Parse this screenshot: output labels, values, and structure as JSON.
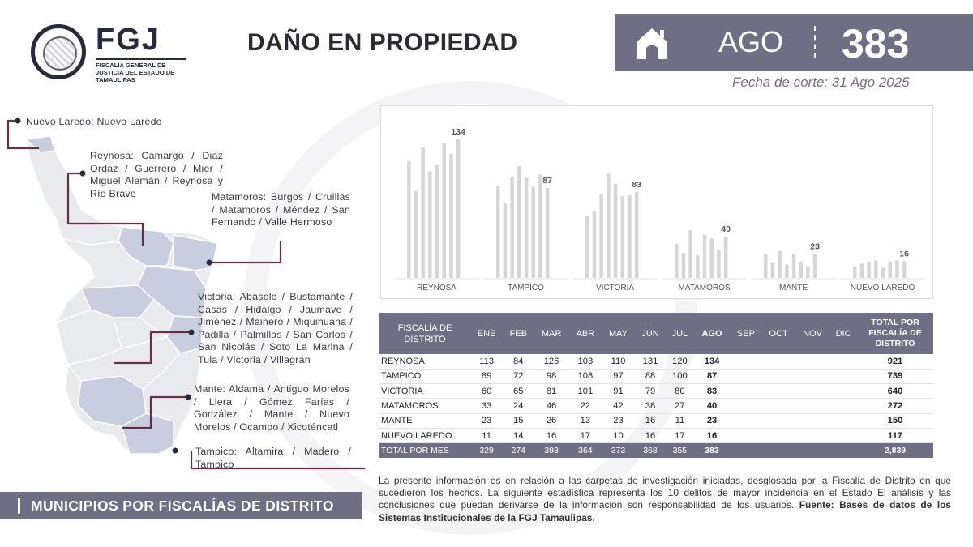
{
  "header": {
    "logo_name": "FGJ",
    "logo_subtitle": "FISCALÍA GENERAL DE JUSTICIA DEL ESTADO DE TAMAULIPAS",
    "title": "DAÑO EN PROPIEDAD",
    "month": "AGO",
    "month_total": "383",
    "cutoff": "Fecha de corte: 31 Ago 2025",
    "icon": "house-icon"
  },
  "districts": [
    {
      "label": "Nuevo Laredo: Nuevo Laredo"
    },
    {
      "label": "Reynosa: Camargo / Diaz Ordaz / Guerrero / Mier / Miguel Alemán / Reynosa y Río Bravo"
    },
    {
      "label": "Matamoros: Burgos / Cruillas / Matamoros / Méndez / San Fernando / Valle Hermoso"
    },
    {
      "label": "Victoria: Abasolo / Bustamante / Casas / Hidalgo / Jaumave / Jiménez / Mainero / Miquihuana / Padilla / Palmillas / San Carlos / San Nicolás / Soto La Marina / Tula / Victoria / Villagrán"
    },
    {
      "label": "Mante: Aldama / Antiguo Morelos / Llera / Gómez Farías / González / Mante / Nuevo Morelos / Ocampo / Xicoténcatl"
    },
    {
      "label": "Tampico: Altamira / Madero / Tampico"
    }
  ],
  "map_banner": "MUNICIPIOS POR FISCALÍAS DE DISTRITO",
  "chart_data": {
    "type": "bar",
    "months": [
      "ENE",
      "FEB",
      "MAR",
      "ABR",
      "MAY",
      "JUN",
      "JUL",
      "AGO"
    ],
    "series": [
      {
        "name": "REYNOSA",
        "values": [
          113,
          84,
          126,
          103,
          110,
          131,
          120,
          134
        ]
      },
      {
        "name": "TAMPICO",
        "values": [
          89,
          72,
          98,
          108,
          97,
          88,
          100,
          87
        ]
      },
      {
        "name": "VICTORIA",
        "values": [
          60,
          65,
          81,
          101,
          91,
          79,
          80,
          83
        ]
      },
      {
        "name": "MATAMOROS",
        "values": [
          33,
          24,
          46,
          22,
          42,
          38,
          27,
          40
        ]
      },
      {
        "name": "MANTE",
        "values": [
          23,
          15,
          26,
          13,
          23,
          16,
          11,
          23
        ]
      },
      {
        "name": "NUEVO LAREDO",
        "values": [
          11,
          14,
          16,
          17,
          10,
          16,
          17,
          16
        ]
      }
    ],
    "labeled_value": "AGO",
    "bar_color": "#d6d6d9",
    "label_color": "#555555"
  },
  "table": {
    "head_first": "FISCALÍA DE DISTRITO",
    "months": [
      "ENE",
      "FEB",
      "MAR",
      "ABR",
      "MAY",
      "JUN",
      "JUL",
      "AGO",
      "SEP",
      "OCT",
      "NOV",
      "DIC"
    ],
    "head_total": "TOTAL POR FISCALÍA DE DISTRITO",
    "rows": [
      {
        "name": "REYNOSA",
        "values": [
          "113",
          "84",
          "126",
          "103",
          "110",
          "131",
          "120",
          "134",
          "",
          "",
          "",
          ""
        ],
        "total": "921"
      },
      {
        "name": "TAMPICO",
        "values": [
          "89",
          "72",
          "98",
          "108",
          "97",
          "88",
          "100",
          "87",
          "",
          "",
          "",
          ""
        ],
        "total": "739"
      },
      {
        "name": "VICTORIA",
        "values": [
          "60",
          "65",
          "81",
          "101",
          "91",
          "79",
          "80",
          "83",
          "",
          "",
          "",
          ""
        ],
        "total": "640"
      },
      {
        "name": "MATAMOROS",
        "values": [
          "33",
          "24",
          "46",
          "22",
          "42",
          "38",
          "27",
          "40",
          "",
          "",
          "",
          ""
        ],
        "total": "272"
      },
      {
        "name": "MANTE",
        "values": [
          "23",
          "15",
          "26",
          "13",
          "23",
          "16",
          "11",
          "23",
          "",
          "",
          "",
          ""
        ],
        "total": "150"
      },
      {
        "name": "NUEVO LAREDO",
        "values": [
          "11",
          "14",
          "16",
          "17",
          "10",
          "16",
          "17",
          "16",
          "",
          "",
          "",
          ""
        ],
        "total": "117"
      }
    ],
    "total_row": {
      "name": "TOTAL POR MES",
      "values": [
        "329",
        "274",
        "393",
        "364",
        "373",
        "368",
        "355",
        "383",
        "",
        "",
        "",
        ""
      ],
      "total": "2,839"
    }
  },
  "note": {
    "text": "La presente información es en relación a las carpetas de investigación iniciadas, desglosada por la Fiscalía de Distrito en que sucedieron los hechos. La siguiente estadística representa los 10 delitos de mayor incidencia en el Estado El análisis y las conclusiones que puedan derivarse de la información son responsabilidad de los usuarios. ",
    "source": "Fuente: Bases de datos de los Sistemas Institucionales de la FGJ Tamaulipas."
  },
  "colors": {
    "accent": "#6e6f84",
    "map_fill": "#c9cde0",
    "map_fill_light": "#e7e8ed",
    "connector": "#6b2d47"
  }
}
